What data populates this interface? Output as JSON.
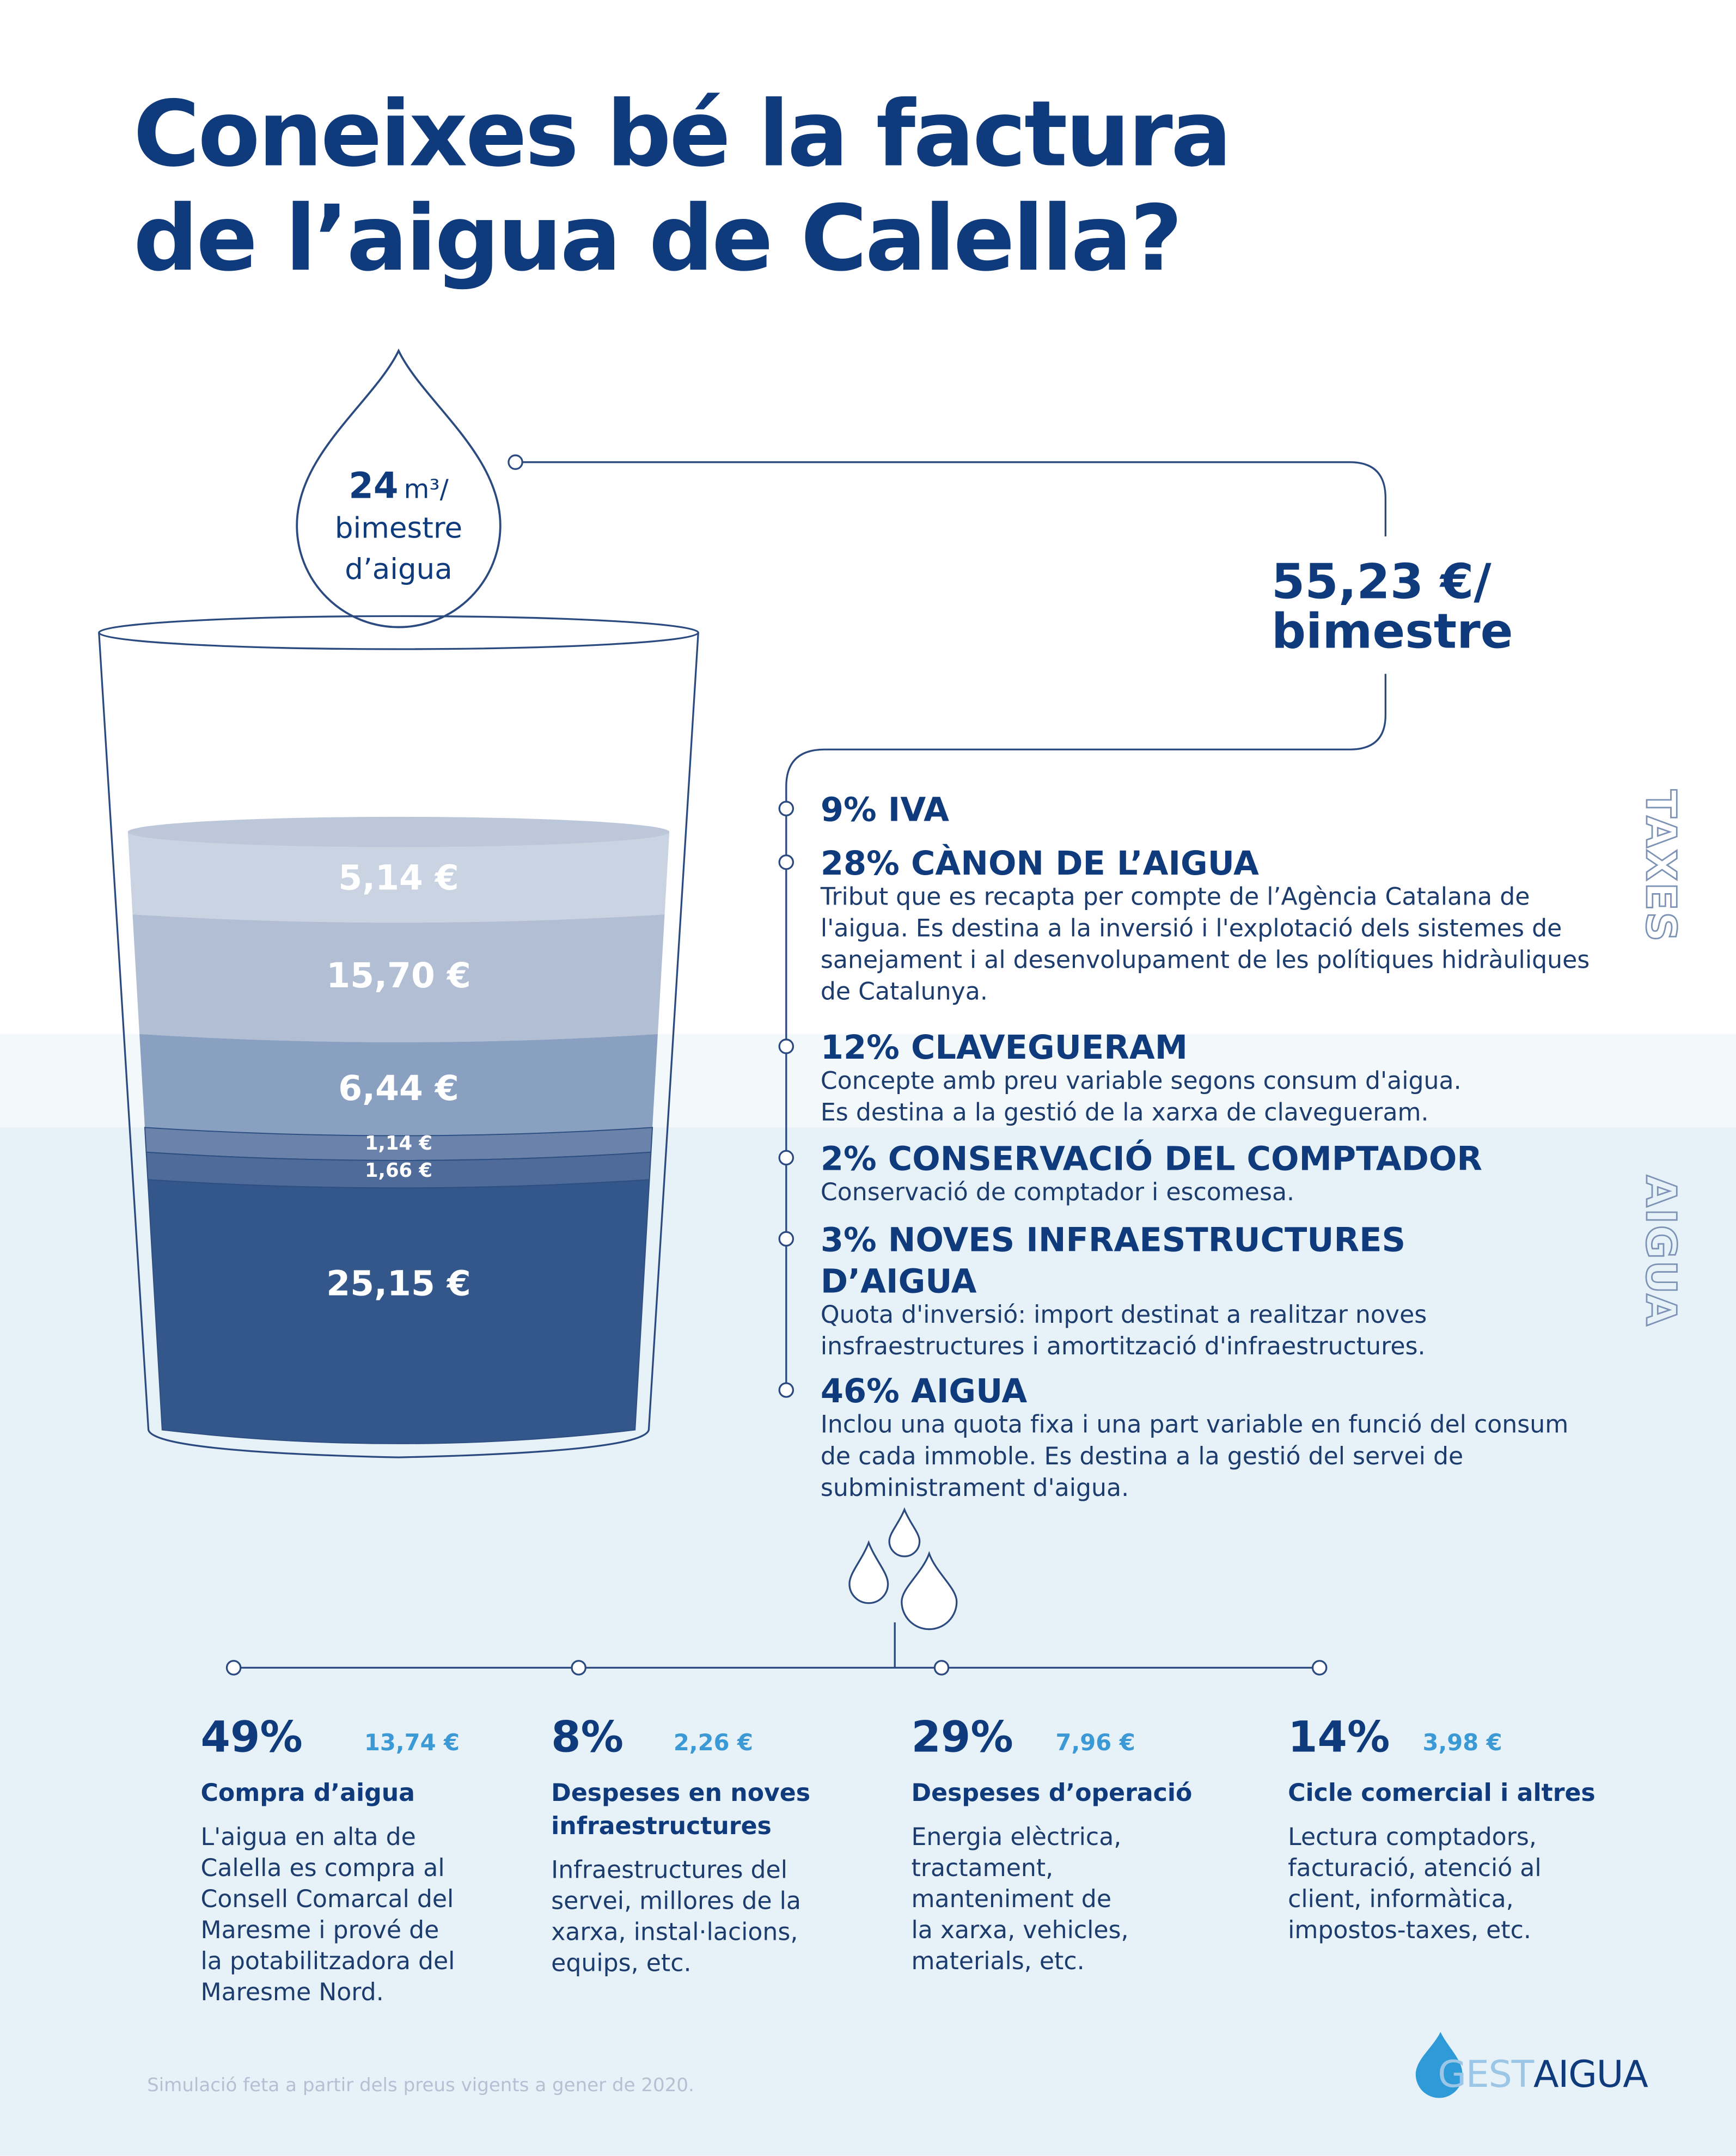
{
  "title": [
    "Coneixes bé la factura",
    "de l’aigua de Calella?"
  ],
  "drop": {
    "amount": "24",
    "unit": "m³/",
    "lines": [
      "bimestre",
      "d’aigua"
    ]
  },
  "total": [
    "55,23 €/",
    "bimestre"
  ],
  "glass_layers": [
    "5,14 €",
    "15,70 €",
    "6,44 €",
    "1,14 €",
    "1,66 €",
    "25,15 €"
  ],
  "side_labels": [
    "TAXES",
    "AIGUA"
  ],
  "items": [
    {
      "heading": [
        "9% IVA"
      ],
      "text": []
    },
    {
      "heading": [
        "28% CÀNON DE L’AIGUA"
      ],
      "text": [
        "Tribut que es recapta per compte de l’Agència Catalana de",
        "l'aigua.  Es destina a la inversió i l'explotació dels sistemes de",
        "sanejament i al desenvolupament de les polítiques hidràuliques",
        "de Catalunya."
      ]
    },
    {
      "heading": [
        "12% CLAVEGUERAM"
      ],
      "text": [
        "Concepte amb preu variable segons consum d'aigua.",
        "Es destina a la gestió de la xarxa de clavegueram."
      ]
    },
    {
      "heading": [
        "2% CONSERVACIÓ DEL COMPTADOR"
      ],
      "text": [
        "Conservació de comptador i escomesa."
      ]
    },
    {
      "heading": [
        "3% NOVES INFRAESTRUCTURES",
        "D’AIGUA"
      ],
      "text": [
        "Quota d'inversió: import destinat a realitzar noves",
        "insfraestructures i amortització d'infraestructures."
      ]
    },
    {
      "heading": [
        "46% AIGUA"
      ],
      "text": [
        "Inclou una quota fixa i una part variable en funció del consum",
        "de cada immoble. Es destina a la gestió del servei de",
        "subministrament d'aigua."
      ]
    }
  ],
  "breakdown": [
    {
      "percent": "49%",
      "amount": "13,74 €",
      "heading": [
        "Compra d’aigua"
      ],
      "text": [
        "L'aigua en alta de",
        "Calella es compra al",
        "Consell Comarcal del",
        "Maresme i prové de",
        "la potabilitzadora del",
        "Maresme Nord."
      ]
    },
    {
      "percent": "8%",
      "amount": "2,26 €",
      "heading": [
        "Despeses en noves",
        "infraestructures"
      ],
      "text": [
        "Infraestructures del",
        "servei, millores de la",
        "xarxa, instal·lacions,",
        "equips, etc."
      ]
    },
    {
      "percent": "29%",
      "amount": "7,96 €",
      "heading": [
        "Despeses d’operació"
      ],
      "text": [
        "Energia elèctrica,",
        "tractament,",
        "manteniment de",
        "la xarxa, vehicles,",
        "materials, etc."
      ]
    },
    {
      "percent": "14%",
      "amount": "3,98 €",
      "heading": [
        "Cicle comercial i altres"
      ],
      "text": [
        "Lectura comptadors,",
        "facturació, atenció al",
        "client, informàtica,",
        "impostos-taxes, etc."
      ]
    }
  ],
  "footnote": "Simulació feta a partir dels preus vigents a gener de 2020.",
  "logo": [
    "GEST",
    "AIGUA"
  ]
}
